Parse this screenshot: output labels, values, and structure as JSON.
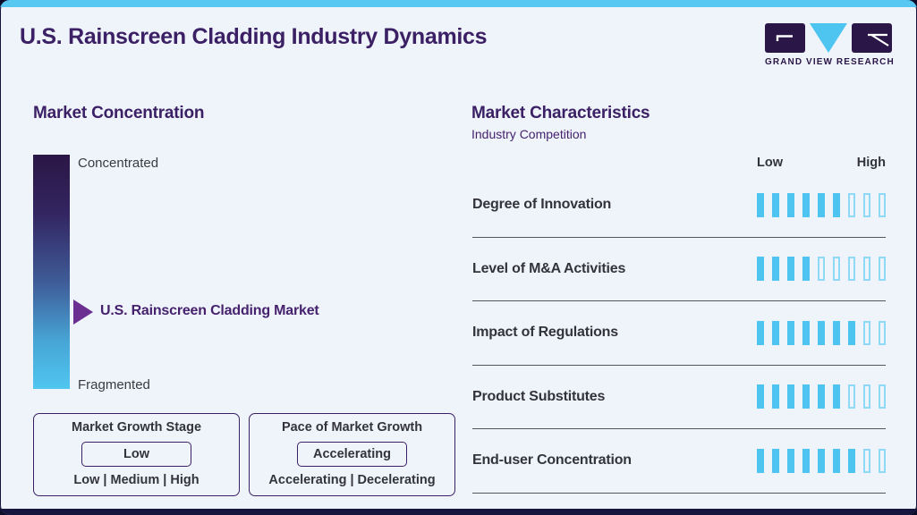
{
  "header": {
    "title": "U.S. Rainscreen Cladding Industry Dynamics",
    "logo_text": "GRAND VIEW RESEARCH"
  },
  "market_concentration": {
    "heading": "Market Concentration",
    "scale": {
      "top_label": "Concentrated",
      "bottom_label": "Fragmented"
    },
    "marker_label": "U.S. Rainscreen Cladding Market",
    "growth_stage_box": {
      "title": "Market Growth Stage",
      "selected_value": "Low",
      "options_line": "Low | Medium | High"
    },
    "growth_pace_box": {
      "title": "Pace of Market Growth",
      "selected_value": "Accelerating",
      "options_line": "Accelerating | Decelerating"
    }
  },
  "market_characteristics": {
    "heading": "Market Characteristics",
    "subtitle": "Industry Competition",
    "scale_low_label": "Low",
    "scale_high_label": "High"
  },
  "chart_data": {
    "type": "bar",
    "title": "Market Characteristics - Industry Competition",
    "categories": [
      "Degree of Innovation",
      "Level of M&A Activities",
      "Impact of Regulations",
      "Product Substitutes",
      "End-user Concentration"
    ],
    "values": [
      6,
      4,
      7,
      6,
      7
    ],
    "scale_max": 9,
    "scale_labels": [
      "Low",
      "High"
    ],
    "legend": "filled segments indicate rating on a Low-to-High scale"
  },
  "colors": {
    "accent_cyan": "#4dc5f0",
    "segment_outline_cyan": "#8ed9f5",
    "brand_purple": "#3b2065",
    "marker_purple": "#6b2e91",
    "top_bar_cyan": "#56c8f1",
    "bottom_bar_navy": "#15153e",
    "text_dark": "#33333c",
    "gradient_top": "#2b1745",
    "gradient_bottom": "#4fc6f0",
    "background": "#eff4fa"
  }
}
